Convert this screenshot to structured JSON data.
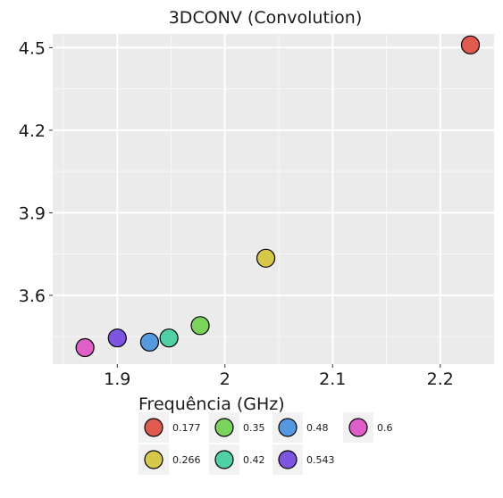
{
  "chart_data": {
    "type": "scatter",
    "title": "3DCONV (Convolution)",
    "xlabel": "",
    "ylabel": "",
    "xlim": [
      1.84,
      2.25
    ],
    "ylim": [
      3.35,
      4.55
    ],
    "x_ticks": [
      1.9,
      2.0,
      2.1,
      2.2
    ],
    "x_tick_labels": [
      "1.9",
      "2",
      "2.1",
      "2.2"
    ],
    "y_ticks": [
      3.6,
      3.9,
      4.2,
      4.5
    ],
    "y_tick_labels": [
      "3.6",
      "3.9",
      "4.2",
      "4.5"
    ],
    "grid": true,
    "legend": {
      "title": "Frequência (GHz)",
      "placement": "bottom",
      "columns": 4
    },
    "series": [
      {
        "name": "0.177",
        "color": "#e05a4e",
        "x": [
          2.228
        ],
        "y": [
          4.51
        ]
      },
      {
        "name": "0.266",
        "color": "#d8c84a",
        "x": [
          2.038
        ],
        "y": [
          3.735
        ]
      },
      {
        "name": "0.35",
        "color": "#7ad35a",
        "x": [
          1.977
        ],
        "y": [
          3.49
        ]
      },
      {
        "name": "0.42",
        "color": "#4fd1a5",
        "x": [
          1.948
        ],
        "y": [
          3.445
        ]
      },
      {
        "name": "0.48",
        "color": "#5599e0",
        "x": [
          1.93
        ],
        "y": [
          3.43
        ]
      },
      {
        "name": "0.543",
        "color": "#7d55e0",
        "x": [
          1.9
        ],
        "y": [
          3.445
        ]
      },
      {
        "name": "0.6",
        "color": "#e05ec8",
        "x": [
          1.87
        ],
        "y": [
          3.41
        ]
      }
    ]
  }
}
